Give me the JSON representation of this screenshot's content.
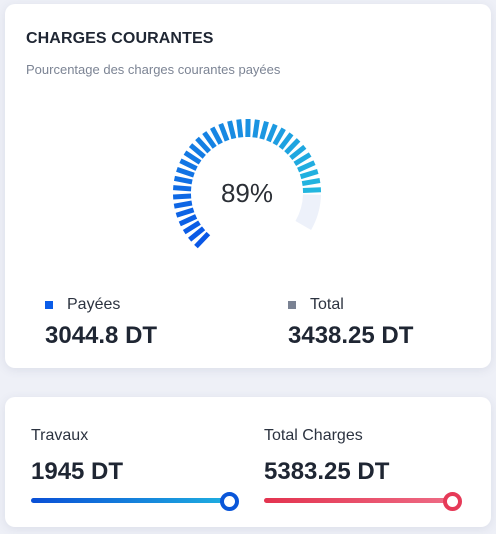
{
  "card": {
    "title": "CHARGES COURANTES",
    "subtitle": "Pourcentage des charges courantes payées",
    "gauge": {
      "percent": 89,
      "label": "89%"
    },
    "legend": [
      {
        "label": "Payées",
        "value": "3044.8 DT",
        "color": "#0a5ce8"
      },
      {
        "label": "Total",
        "value": "3438.25 DT",
        "color": "#7a8293"
      }
    ]
  },
  "stats": [
    {
      "label": "Travaux",
      "value": "1945 DT",
      "progress": 1.0,
      "colors": [
        "#0a4fd6",
        "#1fb0e0"
      ]
    },
    {
      "label": "Total Charges",
      "value": "5383.25 DT",
      "progress": 1.0,
      "colors": [
        "#e3334f",
        "#ee6c86"
      ]
    }
  ],
  "gauge_colors": {
    "start": "#0a57e6",
    "end": "#23b6df",
    "track": "#edf1fa"
  }
}
